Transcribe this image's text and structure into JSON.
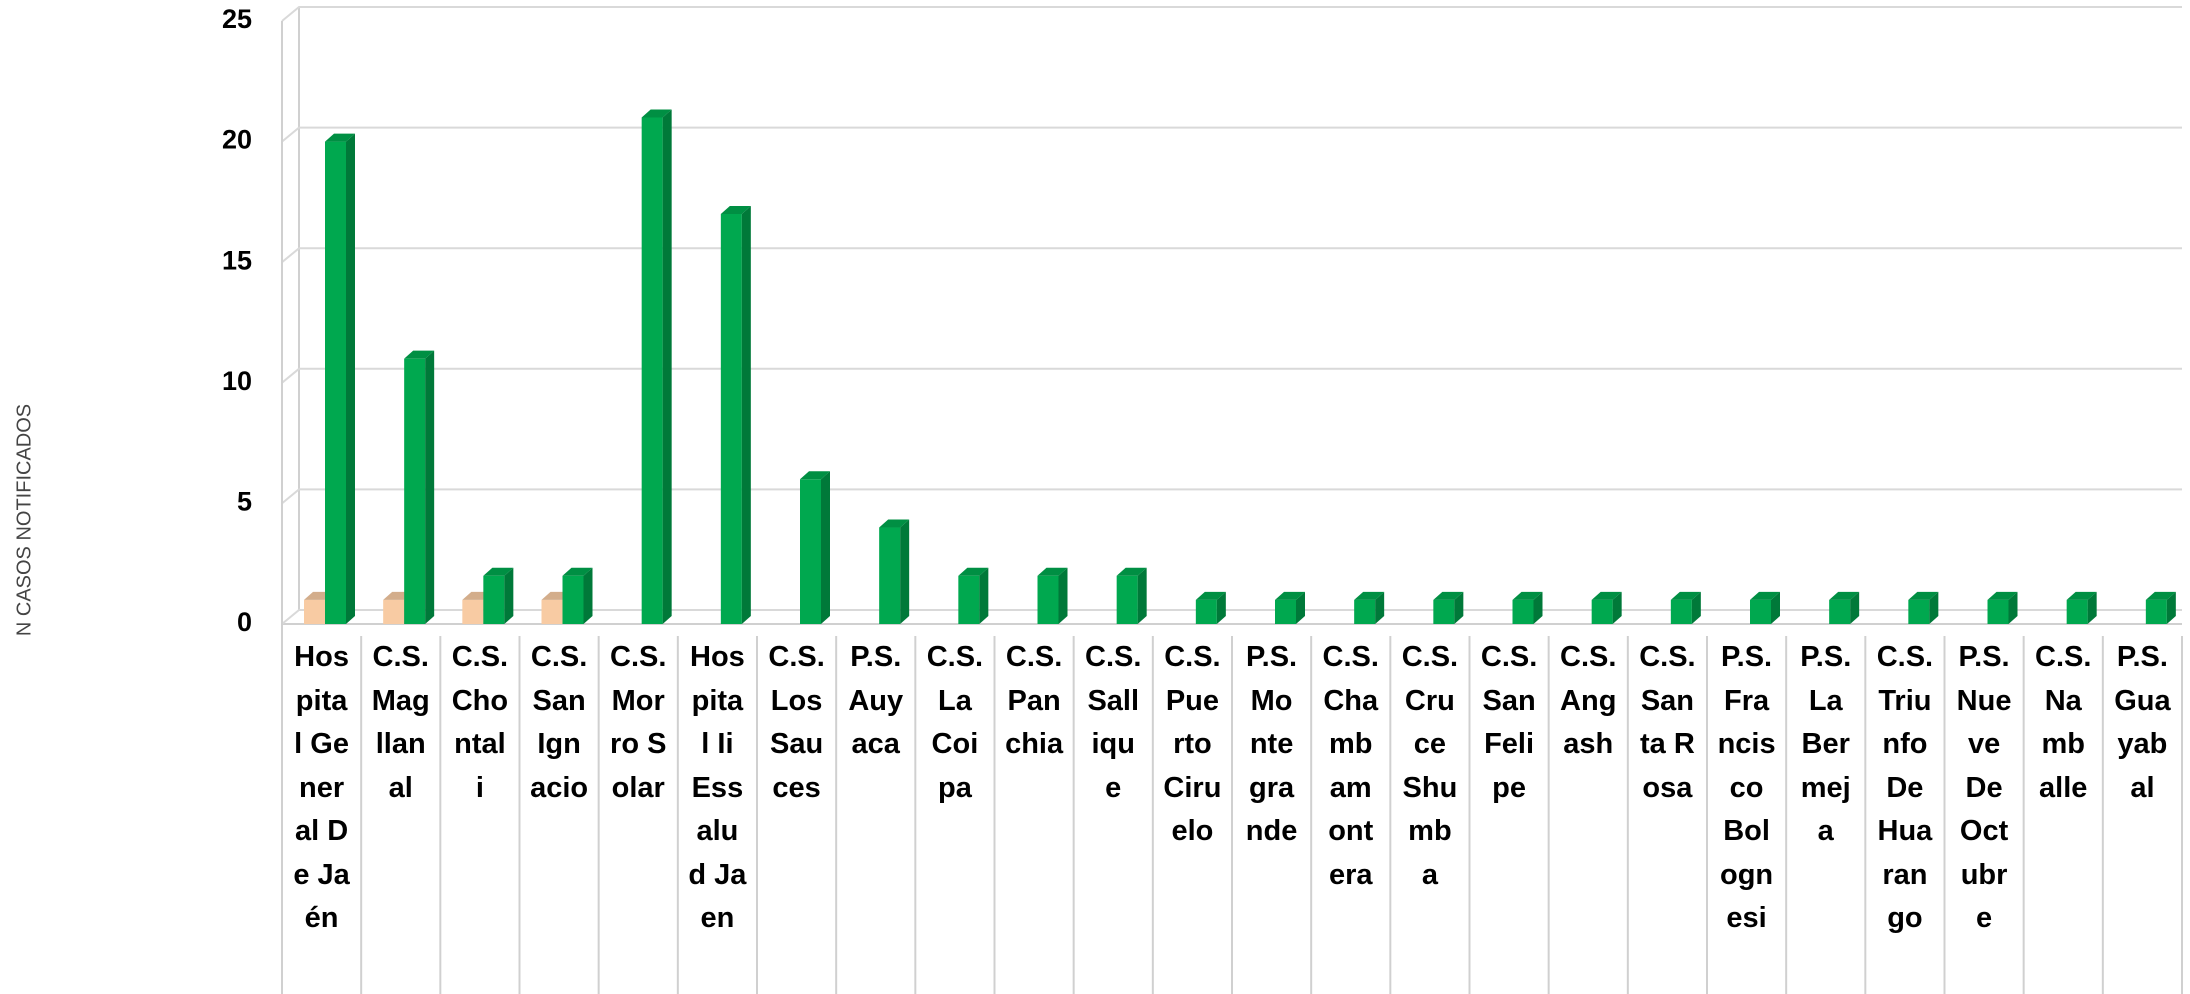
{
  "chart_data": {
    "type": "bar3d",
    "y_label": "N CASOS NOTIFICADOS",
    "categories": [
      "Hospital General De Jaén",
      "C.S. Magllanal",
      "C.S. Chontali",
      "C.S. San Ignacio",
      "C.S. Morro Solar",
      "Hospital Ii Essalud Jaen",
      "C.S. Los Sauces",
      "P.S. Auyaca",
      "C.S. La Coipa",
      "C.S. Panchia",
      "C.S. Sallique",
      "C.S. Puerto Ciruelo",
      "P.S. Montegrande",
      "C.S. Chambamontera",
      "C.S. Cruce Shumba",
      "C.S. San Felipe",
      "C.S. Angash",
      "C.S. Santa Rosa",
      "P.S. Francisco Bolognesi",
      "P.S. La Bermeja",
      "C.S. Triunfo De Huarango",
      "P.S. Nueve De Octubre",
      "C.S. Namballe",
      "P.S. Guayabal"
    ],
    "series": [
      {
        "color": "#f8cba3",
        "values": [
          1,
          1,
          1,
          1,
          null,
          null,
          null,
          null,
          null,
          null,
          null,
          null,
          null,
          null,
          null,
          null,
          null,
          null,
          null,
          null,
          null,
          null,
          null,
          null
        ]
      },
      {
        "color": "#00a84f",
        "values": [
          20,
          11,
          2,
          2,
          21,
          17,
          6,
          4,
          2,
          2,
          2,
          1,
          1,
          1,
          1,
          1,
          1,
          1,
          1,
          1,
          1,
          1,
          1,
          1
        ]
      }
    ],
    "ylim": [
      0,
      25
    ],
    "yticks": [
      0,
      5,
      10,
      15,
      20,
      25
    ],
    "grid": true
  }
}
